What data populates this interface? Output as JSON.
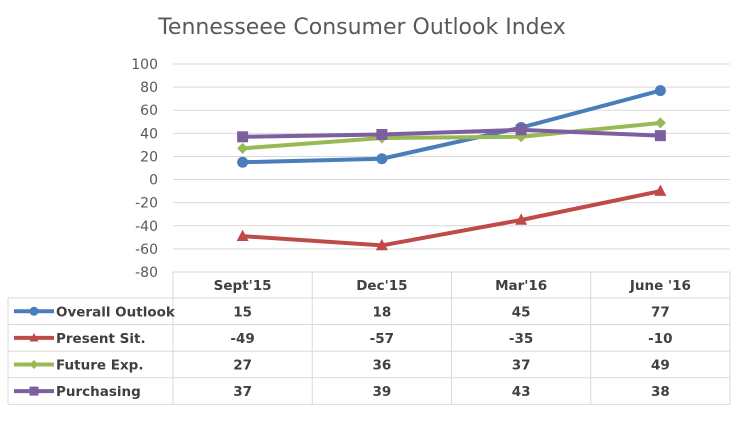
{
  "chart_data": {
    "type": "line",
    "title": "Tennesseee Consumer Outlook Index",
    "xlabel": "",
    "ylabel": "",
    "ylim": [
      -80,
      100
    ],
    "yticks": [
      "100",
      "80",
      "60",
      "40",
      "20",
      "0",
      "-20",
      "-40",
      "-60",
      "-80"
    ],
    "ytick_values": [
      100,
      80,
      60,
      40,
      20,
      0,
      -20,
      -40,
      -60,
      -80
    ],
    "grid": true,
    "legend": "data-table-left",
    "categories": [
      "Sept'15",
      "Dec'15",
      "Mar'16",
      "June '16"
    ],
    "series": [
      {
        "name": "Overall Outlook",
        "color": "#4a7ebb",
        "marker": "circle",
        "values": [
          15,
          18,
          45,
          77
        ],
        "labels": [
          "15",
          "18",
          "45",
          "77"
        ]
      },
      {
        "name": "Present Sit.",
        "color": "#be4b48",
        "marker": "triangle",
        "values": [
          -49,
          -57,
          -35,
          -10
        ],
        "labels": [
          "-49",
          "-57",
          "-35",
          "-10"
        ]
      },
      {
        "name": "Future Exp.",
        "color": "#98b954",
        "marker": "diamond",
        "values": [
          27,
          36,
          37,
          49
        ],
        "labels": [
          "27",
          "36",
          "37",
          "49"
        ]
      },
      {
        "name": "Purchasing",
        "color": "#7d5fa0",
        "marker": "square",
        "values": [
          37,
          39,
          43,
          38
        ],
        "labels": [
          "37",
          "39",
          "43",
          "38"
        ]
      }
    ]
  }
}
